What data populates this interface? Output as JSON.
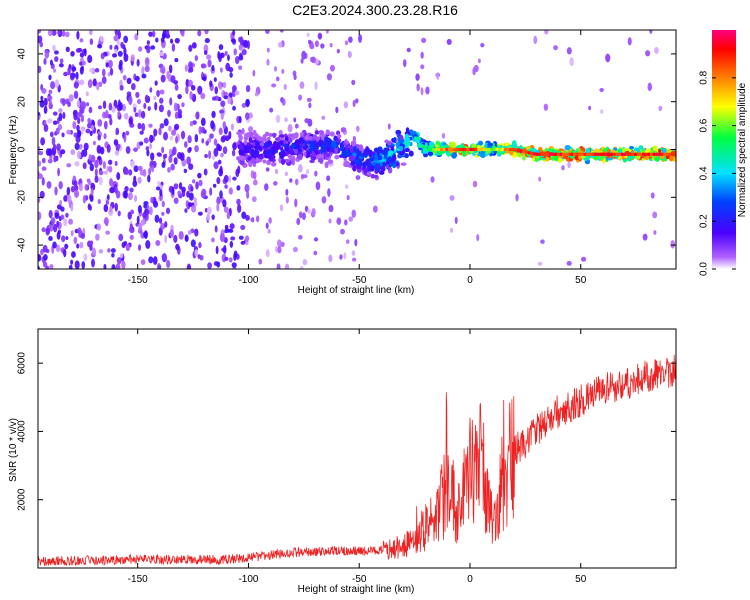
{
  "title": "C2E3.2024.300.23.28.R16",
  "chart_data": [
    {
      "type": "heatmap",
      "xlabel": "Height of straight line (km)",
      "ylabel": "Frequency (Hz)",
      "xlim": [
        -195,
        93
      ],
      "ylim": [
        -50,
        50
      ],
      "xticks": [
        -150,
        -100,
        -50,
        0,
        50
      ],
      "yticks": [
        -40,
        -20,
        0,
        20,
        40
      ],
      "colorbar": {
        "label": "Normalized spectral amplitude",
        "range": [
          0,
          1
        ],
        "ticks": [
          "0.0",
          "0.2",
          "0.4",
          "0.6",
          "0.8"
        ],
        "colors": [
          "#ffffff",
          "#9b30ff",
          "#0000ff",
          "#00d8ff",
          "#00ff00",
          "#ffff00",
          "#ff8000",
          "#ff0000",
          "#ff0080"
        ]
      },
      "ridge": [
        {
          "x": -100,
          "y": 0,
          "amp": 0.25
        },
        {
          "x": -80,
          "y": 1,
          "amp": 0.3
        },
        {
          "x": -60,
          "y": 2,
          "amp": 0.3
        },
        {
          "x": -45,
          "y": -6,
          "amp": 0.35
        },
        {
          "x": -35,
          "y": -2,
          "amp": 0.45
        },
        {
          "x": -25,
          "y": 6,
          "amp": 0.5
        },
        {
          "x": -20,
          "y": 0,
          "amp": 0.5
        },
        {
          "x": -10,
          "y": 0,
          "amp": 0.85
        },
        {
          "x": 0,
          "y": 0,
          "amp": 0.9
        },
        {
          "x": 10,
          "y": 0,
          "amp": 0.55
        },
        {
          "x": 20,
          "y": 0,
          "amp": 0.9
        },
        {
          "x": 30,
          "y": -2,
          "amp": 0.9
        },
        {
          "x": 50,
          "y": -2,
          "amp": 0.9
        },
        {
          "x": 70,
          "y": -2,
          "amp": 0.9
        },
        {
          "x": 90,
          "y": -2,
          "amp": 0.9
        }
      ]
    },
    {
      "type": "line",
      "xlabel": "Height of straight line (km)",
      "ylabel": "SNR (10 * v/v)",
      "xlim": [
        -195,
        93
      ],
      "ylim": [
        0,
        7000
      ],
      "xticks": [
        -150,
        -100,
        -50,
        0,
        50
      ],
      "yticks": [
        2000,
        4000,
        6000
      ],
      "color": "#ee2222",
      "x": [
        -195,
        -150,
        -110,
        -100,
        -80,
        -60,
        -45,
        -35,
        -30,
        -25,
        -20,
        -15,
        -10,
        -5,
        0,
        5,
        10,
        15,
        20,
        30,
        40,
        50,
        60,
        70,
        80,
        93
      ],
      "y": [
        200,
        250,
        250,
        300,
        450,
        500,
        500,
        550,
        650,
        800,
        1200,
        1500,
        2400,
        1600,
        2900,
        3100,
        1300,
        2700,
        3400,
        4000,
        4600,
        4900,
        5200,
        5400,
        5600,
        5800
      ]
    }
  ]
}
